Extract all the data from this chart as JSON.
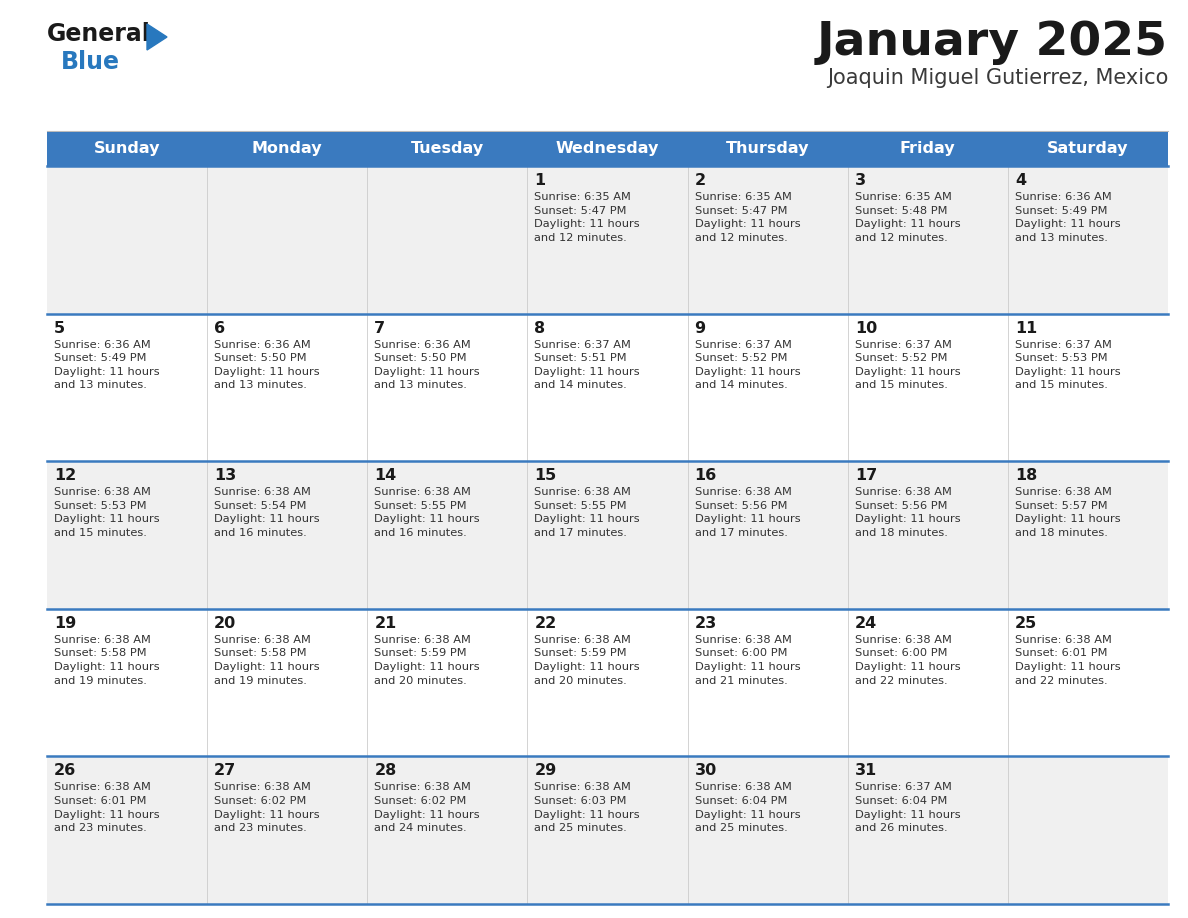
{
  "title": "January 2025",
  "subtitle": "Joaquin Miguel Gutierrez, Mexico",
  "header_bg": "#3a7abf",
  "header_text_color": "#ffffff",
  "row_bg_odd": "#f0f0f0",
  "row_bg_even": "#ffffff",
  "separator_color": "#3a7abf",
  "day_headers": [
    "Sunday",
    "Monday",
    "Tuesday",
    "Wednesday",
    "Thursday",
    "Friday",
    "Saturday"
  ],
  "calendar": [
    [
      {
        "day": "",
        "info": ""
      },
      {
        "day": "",
        "info": ""
      },
      {
        "day": "",
        "info": ""
      },
      {
        "day": "1",
        "info": "Sunrise: 6:35 AM\nSunset: 5:47 PM\nDaylight: 11 hours\nand 12 minutes."
      },
      {
        "day": "2",
        "info": "Sunrise: 6:35 AM\nSunset: 5:47 PM\nDaylight: 11 hours\nand 12 minutes."
      },
      {
        "day": "3",
        "info": "Sunrise: 6:35 AM\nSunset: 5:48 PM\nDaylight: 11 hours\nand 12 minutes."
      },
      {
        "day": "4",
        "info": "Sunrise: 6:36 AM\nSunset: 5:49 PM\nDaylight: 11 hours\nand 13 minutes."
      }
    ],
    [
      {
        "day": "5",
        "info": "Sunrise: 6:36 AM\nSunset: 5:49 PM\nDaylight: 11 hours\nand 13 minutes."
      },
      {
        "day": "6",
        "info": "Sunrise: 6:36 AM\nSunset: 5:50 PM\nDaylight: 11 hours\nand 13 minutes."
      },
      {
        "day": "7",
        "info": "Sunrise: 6:36 AM\nSunset: 5:50 PM\nDaylight: 11 hours\nand 13 minutes."
      },
      {
        "day": "8",
        "info": "Sunrise: 6:37 AM\nSunset: 5:51 PM\nDaylight: 11 hours\nand 14 minutes."
      },
      {
        "day": "9",
        "info": "Sunrise: 6:37 AM\nSunset: 5:52 PM\nDaylight: 11 hours\nand 14 minutes."
      },
      {
        "day": "10",
        "info": "Sunrise: 6:37 AM\nSunset: 5:52 PM\nDaylight: 11 hours\nand 15 minutes."
      },
      {
        "day": "11",
        "info": "Sunrise: 6:37 AM\nSunset: 5:53 PM\nDaylight: 11 hours\nand 15 minutes."
      }
    ],
    [
      {
        "day": "12",
        "info": "Sunrise: 6:38 AM\nSunset: 5:53 PM\nDaylight: 11 hours\nand 15 minutes."
      },
      {
        "day": "13",
        "info": "Sunrise: 6:38 AM\nSunset: 5:54 PM\nDaylight: 11 hours\nand 16 minutes."
      },
      {
        "day": "14",
        "info": "Sunrise: 6:38 AM\nSunset: 5:55 PM\nDaylight: 11 hours\nand 16 minutes."
      },
      {
        "day": "15",
        "info": "Sunrise: 6:38 AM\nSunset: 5:55 PM\nDaylight: 11 hours\nand 17 minutes."
      },
      {
        "day": "16",
        "info": "Sunrise: 6:38 AM\nSunset: 5:56 PM\nDaylight: 11 hours\nand 17 minutes."
      },
      {
        "day": "17",
        "info": "Sunrise: 6:38 AM\nSunset: 5:56 PM\nDaylight: 11 hours\nand 18 minutes."
      },
      {
        "day": "18",
        "info": "Sunrise: 6:38 AM\nSunset: 5:57 PM\nDaylight: 11 hours\nand 18 minutes."
      }
    ],
    [
      {
        "day": "19",
        "info": "Sunrise: 6:38 AM\nSunset: 5:58 PM\nDaylight: 11 hours\nand 19 minutes."
      },
      {
        "day": "20",
        "info": "Sunrise: 6:38 AM\nSunset: 5:58 PM\nDaylight: 11 hours\nand 19 minutes."
      },
      {
        "day": "21",
        "info": "Sunrise: 6:38 AM\nSunset: 5:59 PM\nDaylight: 11 hours\nand 20 minutes."
      },
      {
        "day": "22",
        "info": "Sunrise: 6:38 AM\nSunset: 5:59 PM\nDaylight: 11 hours\nand 20 minutes."
      },
      {
        "day": "23",
        "info": "Sunrise: 6:38 AM\nSunset: 6:00 PM\nDaylight: 11 hours\nand 21 minutes."
      },
      {
        "day": "24",
        "info": "Sunrise: 6:38 AM\nSunset: 6:00 PM\nDaylight: 11 hours\nand 22 minutes."
      },
      {
        "day": "25",
        "info": "Sunrise: 6:38 AM\nSunset: 6:01 PM\nDaylight: 11 hours\nand 22 minutes."
      }
    ],
    [
      {
        "day": "26",
        "info": "Sunrise: 6:38 AM\nSunset: 6:01 PM\nDaylight: 11 hours\nand 23 minutes."
      },
      {
        "day": "27",
        "info": "Sunrise: 6:38 AM\nSunset: 6:02 PM\nDaylight: 11 hours\nand 23 minutes."
      },
      {
        "day": "28",
        "info": "Sunrise: 6:38 AM\nSunset: 6:02 PM\nDaylight: 11 hours\nand 24 minutes."
      },
      {
        "day": "29",
        "info": "Sunrise: 6:38 AM\nSunset: 6:03 PM\nDaylight: 11 hours\nand 25 minutes."
      },
      {
        "day": "30",
        "info": "Sunrise: 6:38 AM\nSunset: 6:04 PM\nDaylight: 11 hours\nand 25 minutes."
      },
      {
        "day": "31",
        "info": "Sunrise: 6:37 AM\nSunset: 6:04 PM\nDaylight: 11 hours\nand 26 minutes."
      },
      {
        "day": "",
        "info": ""
      }
    ]
  ],
  "logo_color_general": "#1a1a1a",
  "logo_color_blue": "#2878be",
  "logo_triangle_color": "#2878be",
  "fig_width": 11.88,
  "fig_height": 9.18,
  "dpi": 100
}
